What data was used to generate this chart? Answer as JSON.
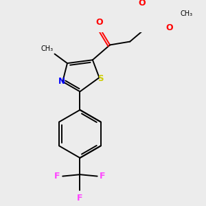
{
  "background_color": "#ececec",
  "atom_colors": {
    "C": "#000000",
    "N": "#0000ff",
    "O": "#ff0000",
    "S": "#cccc00",
    "F": "#ff44ff",
    "CH3": "#000000"
  },
  "figsize": [
    3.0,
    3.0
  ],
  "dpi": 100
}
